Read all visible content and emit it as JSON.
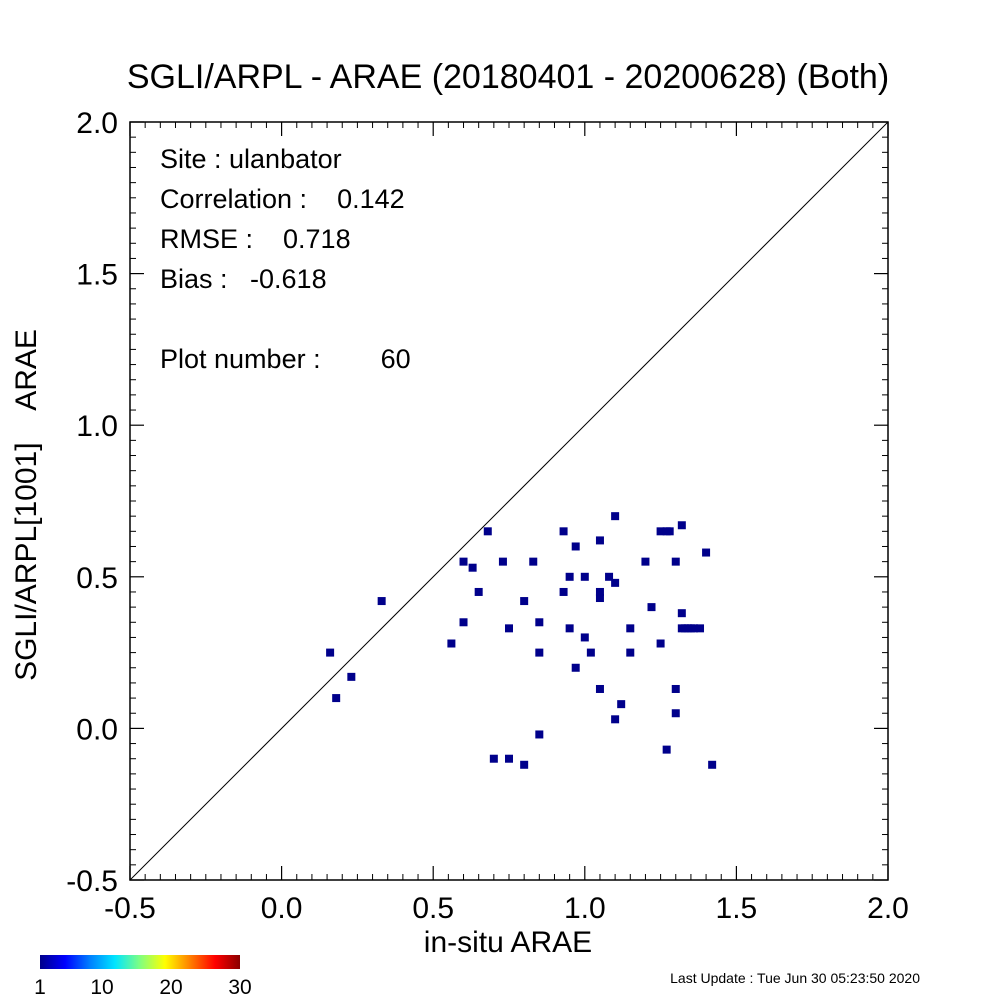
{
  "chart_data": {
    "type": "scatter",
    "title": "SGLI/ARPL - ARAE (20180401 - 20200628) (Both)",
    "xlabel": "in-situ ARAE",
    "ylabel": "SGLI/ARPL[1001]    ARAE",
    "xlim": [
      -0.5,
      2.0
    ],
    "ylim": [
      -0.5,
      2.0
    ],
    "x_ticks": [
      "-0.5",
      "0.0",
      "0.5",
      "1.0",
      "1.5",
      "2.0"
    ],
    "y_ticks": [
      "-0.5",
      "0.0",
      "0.5",
      "1.0",
      "1.5",
      "2.0"
    ],
    "grid": false,
    "reference_line": "1:1",
    "marker_color": "#00008b",
    "stats": {
      "site_label": "Site : ulanbator",
      "correlation_label": "Correlation :    0.142",
      "rmse_label": "RMSE :    0.718",
      "bias_label": "Bias :   -0.618",
      "plot_number_label": "Plot number :        60"
    },
    "colorbar": {
      "colors": [
        "#00008b",
        "#0000ff",
        "#0080ff",
        "#00e5ff",
        "#80ff80",
        "#ffff00",
        "#ff8000",
        "#ff0000",
        "#8b0000"
      ],
      "tick_labels": [
        "1",
        "10",
        "20",
        "30"
      ],
      "tick_values": [
        1,
        10,
        20,
        30
      ],
      "range": [
        1,
        30
      ]
    },
    "points": [
      {
        "x": 0.16,
        "y": 0.25
      },
      {
        "x": 0.18,
        "y": 0.1
      },
      {
        "x": 0.23,
        "y": 0.17
      },
      {
        "x": 0.33,
        "y": 0.42
      },
      {
        "x": 0.56,
        "y": 0.28
      },
      {
        "x": 0.6,
        "y": 0.55
      },
      {
        "x": 0.6,
        "y": 0.35
      },
      {
        "x": 0.63,
        "y": 0.53
      },
      {
        "x": 0.65,
        "y": 0.45
      },
      {
        "x": 0.68,
        "y": 0.65
      },
      {
        "x": 0.7,
        "y": -0.1
      },
      {
        "x": 0.73,
        "y": 0.55
      },
      {
        "x": 0.75,
        "y": 0.33
      },
      {
        "x": 0.75,
        "y": -0.1
      },
      {
        "x": 0.8,
        "y": 0.42
      },
      {
        "x": 0.8,
        "y": -0.12
      },
      {
        "x": 0.83,
        "y": 0.55
      },
      {
        "x": 0.85,
        "y": 0.35
      },
      {
        "x": 0.85,
        "y": 0.25
      },
      {
        "x": 0.85,
        "y": -0.02
      },
      {
        "x": 0.93,
        "y": 0.65
      },
      {
        "x": 0.93,
        "y": 0.45
      },
      {
        "x": 0.95,
        "y": 0.5
      },
      {
        "x": 0.95,
        "y": 0.33
      },
      {
        "x": 0.97,
        "y": 0.6
      },
      {
        "x": 0.97,
        "y": 0.2
      },
      {
        "x": 1.0,
        "y": 0.5
      },
      {
        "x": 1.0,
        "y": 0.3
      },
      {
        "x": 1.02,
        "y": 0.25
      },
      {
        "x": 1.05,
        "y": 0.62
      },
      {
        "x": 1.05,
        "y": 0.45
      },
      {
        "x": 1.05,
        "y": 0.43
      },
      {
        "x": 1.05,
        "y": 0.13
      },
      {
        "x": 1.08,
        "y": 0.5
      },
      {
        "x": 1.1,
        "y": 0.7
      },
      {
        "x": 1.1,
        "y": 0.48
      },
      {
        "x": 1.1,
        "y": 0.03
      },
      {
        "x": 1.12,
        "y": 0.08
      },
      {
        "x": 1.15,
        "y": 0.33
      },
      {
        "x": 1.15,
        "y": 0.25
      },
      {
        "x": 1.2,
        "y": 0.55
      },
      {
        "x": 1.22,
        "y": 0.4
      },
      {
        "x": 1.25,
        "y": 0.65
      },
      {
        "x": 1.25,
        "y": 0.28
      },
      {
        "x": 1.27,
        "y": 0.65
      },
      {
        "x": 1.27,
        "y": -0.07
      },
      {
        "x": 1.28,
        "y": 0.65
      },
      {
        "x": 1.3,
        "y": 0.55
      },
      {
        "x": 1.3,
        "y": 0.13
      },
      {
        "x": 1.3,
        "y": 0.05
      },
      {
        "x": 1.32,
        "y": 0.67
      },
      {
        "x": 1.32,
        "y": 0.38
      },
      {
        "x": 1.32,
        "y": 0.33
      },
      {
        "x": 1.33,
        "y": 0.33
      },
      {
        "x": 1.35,
        "y": 0.33
      },
      {
        "x": 1.36,
        "y": 0.33
      },
      {
        "x": 1.38,
        "y": 0.33
      },
      {
        "x": 1.4,
        "y": 0.58
      },
      {
        "x": 1.42,
        "y": -0.12
      },
      {
        "x": 1.34,
        "y": 0.33
      }
    ]
  },
  "footer": {
    "last_update": "Last Update : Tue Jun 30 05:23:50 2020"
  }
}
